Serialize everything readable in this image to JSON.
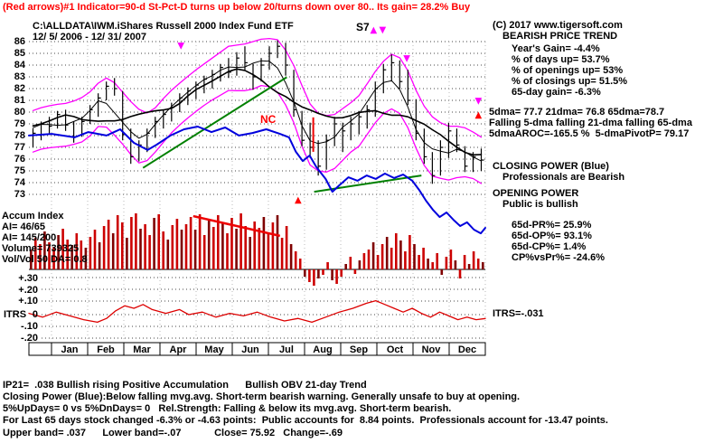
{
  "header": {
    "signal_line": "(Red arrows)#1 Indicator=90-d St-Pct-D turns up below 20/turns down over 80.. Its gain= 28.2% Buy",
    "path_title": "C:\\ALLDATA\\IWM.iShares Russell 2000 Index Fund ETF",
    "date_range": "12/ 5/ 2006 - 12/ 31/ 2007"
  },
  "right_panel": {
    "copyright": "(C) 2017 www.tigersoft.com",
    "trend_header": "BEARISH PRICE TREND",
    "years_gain": "Year's Gain= -4.4%",
    "days_up": "% of days up= 53.7%",
    "openings_up": "% of openings up= 53%",
    "closings_up": "% of closings up= 51.5%",
    "gain_65d": "65-day gain= -6.3%",
    "dmas": "5dma= 77.7 21dma= 76.8 65dma=78.7",
    "dma_falling": "Falling 5-dma falling 21-dma falling 65-dma",
    "aroc": "5dmaAROC=-165.5 %  5-dmaPivotP= 79.17",
    "cp_header": "CLOSING POWER (Blue)",
    "cp_sub": "Professionals are Bearish",
    "op_header": "OPENING POWER",
    "op_sub": "Public is bullish",
    "pr65": "65d-PR%= 25.9%",
    "op65": "65d-OP%= 93.1%",
    "cp65": "65d-CP%= 1.4%",
    "cpvspr": "CP%vsPr%= -24.6%",
    "itrs_value": "ITRS=-.031"
  },
  "left_labels": {
    "accum_index": "Accum Index",
    "ai_65": "AI= 46/65",
    "ai_200": "AI= 145/200",
    "volume": "Volume= 739325",
    "vol_ratio": "Vol/Vol 50 DA= 0.8"
  },
  "axis": {
    "price_ticks": [
      86,
      85,
      84,
      83,
      82,
      81,
      80,
      79,
      78,
      77,
      76,
      75,
      74,
      73
    ],
    "indicator_tick_labels": [
      "+.30",
      "+.20",
      "+.10",
      "0",
      "-.10",
      "-.20"
    ],
    "itrs_label": "ITRS",
    "months": [
      "Jan",
      "Feb",
      "Mar",
      "Apr",
      "May",
      "Jun",
      "Jul",
      "Aug",
      "Sep",
      "Oct",
      "Nov",
      "Dec"
    ]
  },
  "annotations": {
    "signal_label": "S7",
    "nc_label": "NC"
  },
  "footer": {
    "line1": "IP21=  .038 Bullish rising Positive Accumulation      Bullish OBV 21-day Trend",
    "line2": "Closing Power (Blue):Below falling mvg.avg. Short-term bearish warning. Generally unsafe to buy at opening.",
    "line3": "5%UpDays= 0 vs 5%DnDays= 0   Rel.Strength: Falling & below its mvg.avg. Short-term bearish.",
    "line4": "For Last 65 days stock changed -6.3% or -4.63 points:  Public accounts for  8.84 points.  Professionals account for -13.47 points.",
    "line5": "Upper band= .037      Lower band=-.07            Close= 75.92   Change=-.69"
  },
  "colors": {
    "red": "#ee0000",
    "magenta": "#ff00ff",
    "blue": "#0000dd",
    "green": "#008000",
    "black": "#000000"
  },
  "chart_data": {
    "type": "ohlc",
    "title": "IWM iShares Russell 2000 Index Fund ETF daily bars with bands, Closing Power, Accum Index and ITRS, 12/5/2006-12/31/2007",
    "ylim": [
      73,
      86.5
    ],
    "close": 75.92,
    "change": -0.69,
    "price_ticks": [
      86,
      85,
      84,
      83,
      82,
      81,
      80,
      79,
      78,
      77,
      76,
      75,
      74,
      73
    ],
    "weekly_bars_hlc": [
      [
        78.6,
        77.0,
        78.2
      ],
      [
        79.2,
        77.6,
        79.0
      ],
      [
        79.6,
        78.2,
        78.8
      ],
      [
        80.1,
        78.6,
        79.8
      ],
      [
        80.2,
        78.4,
        78.9
      ],
      [
        79.2,
        77.4,
        77.9
      ],
      [
        79.6,
        77.9,
        79.2
      ],
      [
        80.6,
        79.0,
        80.2
      ],
      [
        81.6,
        79.6,
        81.2
      ],
      [
        82.6,
        81.0,
        82.2
      ],
      [
        82.9,
        81.4,
        82.0
      ],
      [
        81.8,
        77.6,
        78.1
      ],
      [
        78.6,
        75.6,
        76.2
      ],
      [
        77.6,
        75.8,
        77.2
      ],
      [
        78.6,
        76.6,
        78.2
      ],
      [
        79.6,
        77.8,
        79.2
      ],
      [
        80.2,
        78.6,
        79.8
      ],
      [
        80.8,
        79.2,
        80.4
      ],
      [
        81.6,
        80.0,
        81.2
      ],
      [
        82.1,
        80.6,
        81.8
      ],
      [
        82.6,
        81.1,
        82.3
      ],
      [
        83.1,
        81.6,
        82.8
      ],
      [
        83.6,
        82.0,
        83.2
      ],
      [
        84.1,
        82.6,
        83.8
      ],
      [
        84.6,
        82.9,
        83.4
      ],
      [
        85.1,
        83.1,
        84.6
      ],
      [
        85.6,
        83.6,
        84.2
      ],
      [
        84.1,
        81.9,
        83.0
      ],
      [
        84.6,
        82.6,
        84.0
      ],
      [
        85.6,
        83.6,
        85.0
      ],
      [
        86.1,
        84.6,
        85.6
      ],
      [
        85.9,
        83.1,
        84.0
      ],
      [
        83.6,
        79.6,
        80.2
      ],
      [
        80.1,
        77.1,
        77.6
      ],
      [
        79.1,
        76.1,
        77.0
      ],
      [
        77.6,
        74.6,
        75.4
      ],
      [
        78.1,
        75.1,
        77.6
      ],
      [
        79.6,
        77.1,
        79.0
      ],
      [
        79.1,
        76.6,
        78.4
      ],
      [
        79.6,
        77.6,
        79.0
      ],
      [
        80.1,
        78.1,
        79.6
      ],
      [
        80.6,
        78.6,
        80.2
      ],
      [
        82.6,
        79.6,
        82.0
      ],
      [
        84.1,
        81.6,
        83.6
      ],
      [
        84.9,
        82.6,
        84.2
      ],
      [
        84.4,
        82.0,
        82.6
      ],
      [
        83.6,
        80.6,
        81.0
      ],
      [
        81.1,
        77.6,
        78.2
      ],
      [
        78.6,
        75.6,
        76.2
      ],
      [
        76.6,
        73.9,
        74.6
      ],
      [
        77.6,
        74.6,
        77.0
      ],
      [
        79.1,
        76.1,
        78.4
      ],
      [
        78.6,
        76.6,
        77.2
      ],
      [
        77.1,
        74.9,
        75.4
      ],
      [
        76.6,
        74.9,
        76.2
      ],
      [
        76.9,
        75.0,
        75.92
      ]
    ],
    "closing_power_points": [
      [
        0,
        0.409
      ],
      [
        0.05,
        0.402
      ],
      [
        0.1,
        0.417
      ],
      [
        0.13,
        0.394
      ],
      [
        0.17,
        0.409
      ],
      [
        0.2,
        0.382
      ],
      [
        0.23,
        0.441
      ],
      [
        0.26,
        0.472
      ],
      [
        0.28,
        0.449
      ],
      [
        0.31,
        0.409
      ],
      [
        0.34,
        0.382
      ],
      [
        0.37,
        0.37
      ],
      [
        0.4,
        0.394
      ],
      [
        0.43,
        0.374
      ],
      [
        0.46,
        0.409
      ],
      [
        0.49,
        0.398
      ],
      [
        0.52,
        0.382
      ],
      [
        0.55,
        0.402
      ],
      [
        0.57,
        0.417
      ],
      [
        0.585,
        0.48
      ],
      [
        0.6,
        0.52
      ],
      [
        0.615,
        0.496
      ],
      [
        0.63,
        0.547
      ],
      [
        0.65,
        0.598
      ],
      [
        0.665,
        0.654
      ],
      [
        0.68,
        0.626
      ],
      [
        0.7,
        0.591
      ],
      [
        0.72,
        0.606
      ],
      [
        0.74,
        0.583
      ],
      [
        0.76,
        0.598
      ],
      [
        0.78,
        0.575
      ],
      [
        0.8,
        0.594
      ],
      [
        0.82,
        0.579
      ],
      [
        0.84,
        0.606
      ],
      [
        0.855,
        0.646
      ],
      [
        0.87,
        0.693
      ],
      [
        0.885,
        0.732
      ],
      [
        0.9,
        0.764
      ],
      [
        0.915,
        0.744
      ],
      [
        0.93,
        0.776
      ],
      [
        0.945,
        0.803
      ],
      [
        0.96,
        0.787
      ],
      [
        0.975,
        0.819
      ],
      [
        0.99,
        0.835
      ],
      [
        1.0,
        0.811
      ]
    ],
    "accum_histogram": [
      22,
      35,
      28,
      42,
      30,
      25,
      38,
      45,
      33,
      27,
      40,
      32,
      24,
      36,
      44,
      30,
      48,
      55,
      40,
      60,
      52,
      35,
      58,
      62,
      45,
      50,
      38,
      57,
      61,
      42,
      33,
      49,
      56,
      44,
      50,
      58,
      44,
      61,
      38,
      55,
      47,
      60,
      52,
      40,
      57,
      45,
      62,
      48,
      36,
      53,
      46,
      58,
      40,
      52,
      60,
      35,
      48,
      28,
      20,
      12,
      -8,
      -14,
      -18,
      -10,
      -6,
      8,
      -12,
      -16,
      -8,
      6,
      14,
      -5,
      10,
      18,
      22,
      30,
      16,
      28,
      36,
      24,
      40,
      32,
      20,
      38,
      28,
      16,
      24,
      12,
      8,
      18,
      -6,
      14,
      22,
      10,
      -10,
      16,
      6,
      20,
      12,
      8
    ],
    "itrs": {
      "ticks": [
        0.3,
        0.2,
        0.1,
        0,
        -0.1,
        -0.2
      ],
      "last_value": -0.031,
      "points": [
        [
          0,
          0.01
        ],
        [
          0.03,
          -0.02
        ],
        [
          0.06,
          0.02
        ],
        [
          0.09,
          -0.01
        ],
        [
          0.12,
          -0.04
        ],
        [
          0.15,
          -0.06
        ],
        [
          0.17,
          -0.03
        ],
        [
          0.19,
          0.03
        ],
        [
          0.21,
          0.07
        ],
        [
          0.23,
          0.05
        ],
        [
          0.25,
          0.08
        ],
        [
          0.27,
          0.04
        ],
        [
          0.3,
          0.01
        ],
        [
          0.33,
          0.04
        ],
        [
          0.35,
          0.0
        ],
        [
          0.38,
          0.02
        ],
        [
          0.41,
          -0.02
        ],
        [
          0.44,
          0.01
        ],
        [
          0.47,
          -0.01
        ],
        [
          0.5,
          0.02
        ],
        [
          0.53,
          -0.02
        ],
        [
          0.56,
          -0.05
        ],
        [
          0.59,
          -0.03
        ],
        [
          0.62,
          -0.06
        ],
        [
          0.65,
          -0.02
        ],
        [
          0.68,
          0.02
        ],
        [
          0.71,
          0.05
        ],
        [
          0.74,
          0.09
        ],
        [
          0.76,
          0.11
        ],
        [
          0.78,
          0.08
        ],
        [
          0.8,
          0.05
        ],
        [
          0.82,
          0.02
        ],
        [
          0.84,
          0.05
        ],
        [
          0.86,
          0.01
        ],
        [
          0.88,
          -0.02
        ],
        [
          0.9,
          0.02
        ],
        [
          0.92,
          -0.01
        ],
        [
          0.94,
          -0.04
        ],
        [
          0.96,
          -0.02
        ],
        [
          0.98,
          -0.04
        ],
        [
          1.0,
          -0.031
        ]
      ]
    },
    "trendlines_green": [
      [
        [
          0.25,
          0.55
        ],
        [
          0.565,
          0.155
        ]
      ],
      [
        [
          0.625,
          0.654
        ],
        [
          0.86,
          0.583
        ]
      ]
    ],
    "accum_trendline_red": [
      [
        0.36,
        0.76
      ],
      [
        0.55,
        0.846
      ]
    ],
    "red_marks": [
      [
        [
          0.623,
          0.33
        ],
        [
          0.623,
          0.48
        ]
      ]
    ],
    "arrows": [
      {
        "color": "magenta",
        "dir": "down",
        "x": 0.333,
        "y": 0.03
      },
      {
        "color": "magenta",
        "dir": "down",
        "x": 0.828,
        "y": 0.085
      },
      {
        "color": "magenta",
        "dir": "up",
        "x": 0.755,
        "y": -0.04
      },
      {
        "color": "magenta",
        "dir": "down",
        "x": 0.775,
        "y": -0.04
      },
      {
        "color": "red",
        "dir": "up",
        "x": 0.59,
        "y": 0.7
      },
      {
        "color": "magenta",
        "dir": "down",
        "x": 0.985,
        "y": 0.27
      },
      {
        "color": "red",
        "dir": "up",
        "x": 0.985,
        "y": 0.33
      }
    ]
  }
}
